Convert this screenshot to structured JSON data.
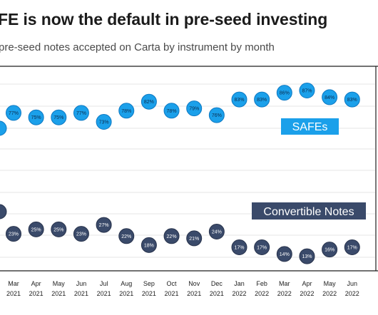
{
  "header": {
    "title": "FE is now the default in pre-seed investing",
    "subtitle": "pre-seed notes accepted on Carta by instrument by month"
  },
  "colors": {
    "safe": "#1ba0ea",
    "safe_stroke": "#0d78c2",
    "note": "#3a4a6a",
    "note_stroke": "#27324b",
    "axis": "#1e1e1e",
    "grid": "#e4e4e4"
  },
  "chart_data": {
    "type": "line",
    "title": "FE is now the default in pre-seed investing",
    "subtitle": "pre-seed notes accepted on Carta by instrument by month",
    "x": [
      {
        "month": "Mar",
        "year": "2021"
      },
      {
        "month": "Apr",
        "year": "2021"
      },
      {
        "month": "May",
        "year": "2021"
      },
      {
        "month": "Jun",
        "year": "2021"
      },
      {
        "month": "Jul",
        "year": "2021"
      },
      {
        "month": "Aug",
        "year": "2021"
      },
      {
        "month": "Sep",
        "year": "2021"
      },
      {
        "month": "Oct",
        "year": "2021"
      },
      {
        "month": "Nov",
        "year": "2021"
      },
      {
        "month": "Dec",
        "year": "2021"
      },
      {
        "month": "Jan",
        "year": "2022"
      },
      {
        "month": "Feb",
        "year": "2022"
      },
      {
        "month": "Mar",
        "year": "2022"
      },
      {
        "month": "Apr",
        "year": "2022"
      },
      {
        "month": "May",
        "year": "2022"
      },
      {
        "month": "Jun",
        "year": "2022"
      }
    ],
    "series": [
      {
        "name": "SAFEs",
        "values": [
          77,
          75,
          75,
          77,
          73,
          78,
          82,
          78,
          79,
          76,
          83,
          83,
          86,
          87,
          84,
          83
        ],
        "labels": [
          "77%",
          "75%",
          "75%",
          "77%",
          "73%",
          "78%",
          "82%",
          "78%",
          "79%",
          "76%",
          "83%",
          "83%",
          "86%",
          "87%",
          "84%",
          "83%"
        ]
      },
      {
        "name": "Convertible Notes",
        "values": [
          23,
          25,
          25,
          23,
          27,
          22,
          18,
          22,
          21,
          24,
          17,
          17,
          14,
          13,
          16,
          17
        ],
        "labels": [
          "23%",
          "25%",
          "25%",
          "23%",
          "27%",
          "22%",
          "18%",
          "22%",
          "21%",
          "24%",
          "17%",
          "17%",
          "14%",
          "13%",
          "16%",
          "17%"
        ]
      }
    ],
    "grid": true,
    "legend": "inline labels inside the plot, right side"
  }
}
